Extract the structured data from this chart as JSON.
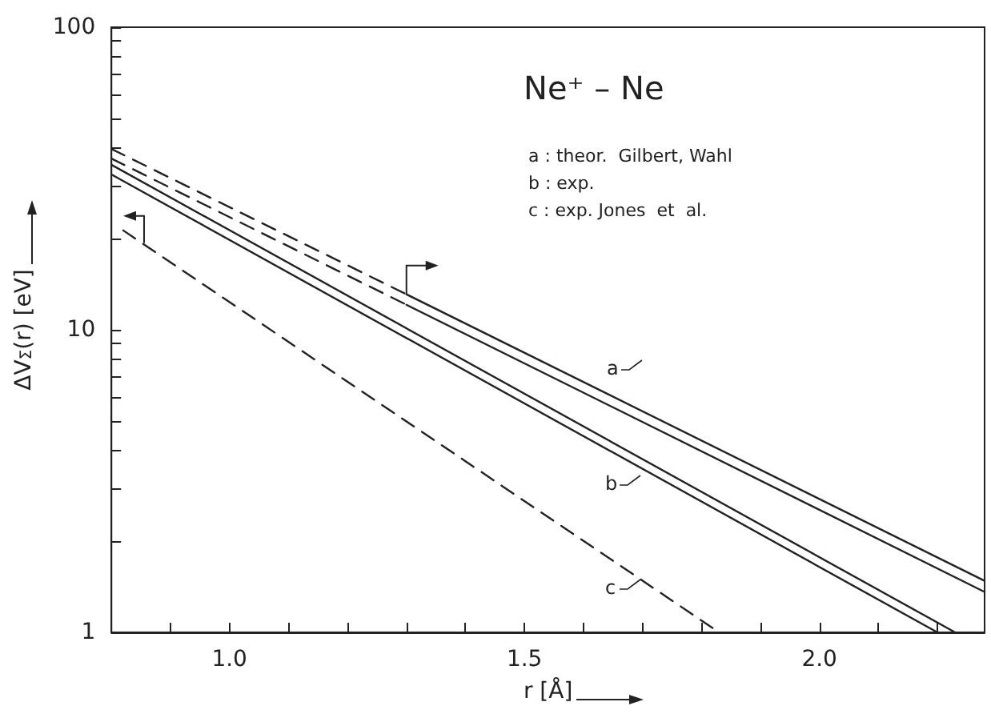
{
  "chart_data": {
    "type": "line",
    "title": "Ne⁺ – Ne",
    "xlabel": "r [Å]",
    "ylabel": "ΔV$_{Σ}$(r) [eV]",
    "log": "y",
    "grid": false,
    "marker": "none",
    "xlim": [
      0.8,
      2.28
    ],
    "ylim": [
      1,
      100
    ],
    "xticks": [
      {
        "value": 0.9,
        "label": null
      },
      {
        "value": 1.0,
        "label": "1.0"
      },
      {
        "value": 1.1,
        "label": null
      },
      {
        "value": 1.2,
        "label": null
      },
      {
        "value": 1.3,
        "label": null
      },
      {
        "value": 1.4,
        "label": null
      },
      {
        "value": 1.5,
        "label": "1.5"
      },
      {
        "value": 1.6,
        "label": null
      },
      {
        "value": 1.7,
        "label": null
      },
      {
        "value": 1.8,
        "label": null
      },
      {
        "value": 1.9,
        "label": null
      },
      {
        "value": 2.0,
        "label": "2.0"
      },
      {
        "value": 2.1,
        "label": null
      },
      {
        "value": 2.2,
        "label": null
      }
    ],
    "yticks": [
      1,
      {
        "value": 2,
        "label": null
      },
      {
        "value": 3,
        "label": null
      },
      {
        "value": 4,
        "label": null
      },
      {
        "value": 5,
        "label": null
      },
      {
        "value": 6,
        "label": null
      },
      {
        "value": 7,
        "label": null
      },
      {
        "value": 8,
        "label": null
      },
      {
        "value": 9,
        "label": null
      },
      10,
      {
        "value": 20,
        "label": null
      },
      {
        "value": 30,
        "label": null
      },
      {
        "value": 40,
        "label": null
      },
      {
        "value": 50,
        "label": null
      },
      {
        "value": 60,
        "label": null
      },
      {
        "value": 70,
        "label": null
      },
      {
        "value": 80,
        "label": null
      },
      {
        "value": 90,
        "label": null
      },
      100
    ],
    "series": [
      {
        "color": "#222222",
        "line_style": "dashed",
        "x": [
          0.8,
          1.3
        ],
        "values": [
          39.6,
          13.1
        ]
      },
      {
        "color": "#222222",
        "line_style": "solid",
        "x": [
          1.3,
          2.28
        ],
        "values": [
          13.1,
          1.48
        ]
      },
      {
        "color": "#222222",
        "line_style": "dashed",
        "x": [
          0.8,
          1.3
        ],
        "values": [
          36.8,
          12.1
        ]
      },
      {
        "color": "#222222",
        "line_style": "solid",
        "x": [
          1.3,
          2.28
        ],
        "values": [
          12.1,
          1.36
        ]
      },
      {
        "color": "#222222",
        "line_style": "solid",
        "x": [
          0.8,
          2.23
        ],
        "values": [
          35.1,
          1
        ]
      },
      {
        "color": "#222222",
        "line_style": "solid",
        "x": [
          0.8,
          2.2
        ],
        "values": [
          32.6,
          1
        ]
      },
      {
        "color": "#222222",
        "line_style": "dashed",
        "x": [
          0.82,
          1.83
        ],
        "values": [
          21.3,
          1
        ]
      }
    ],
    "annotations": [
      "a : theor.  Gilbert, Wahl",
      "b : exp.",
      "c : exp. Jones  et  al.",
      "a",
      "b",
      "c"
    ]
  }
}
